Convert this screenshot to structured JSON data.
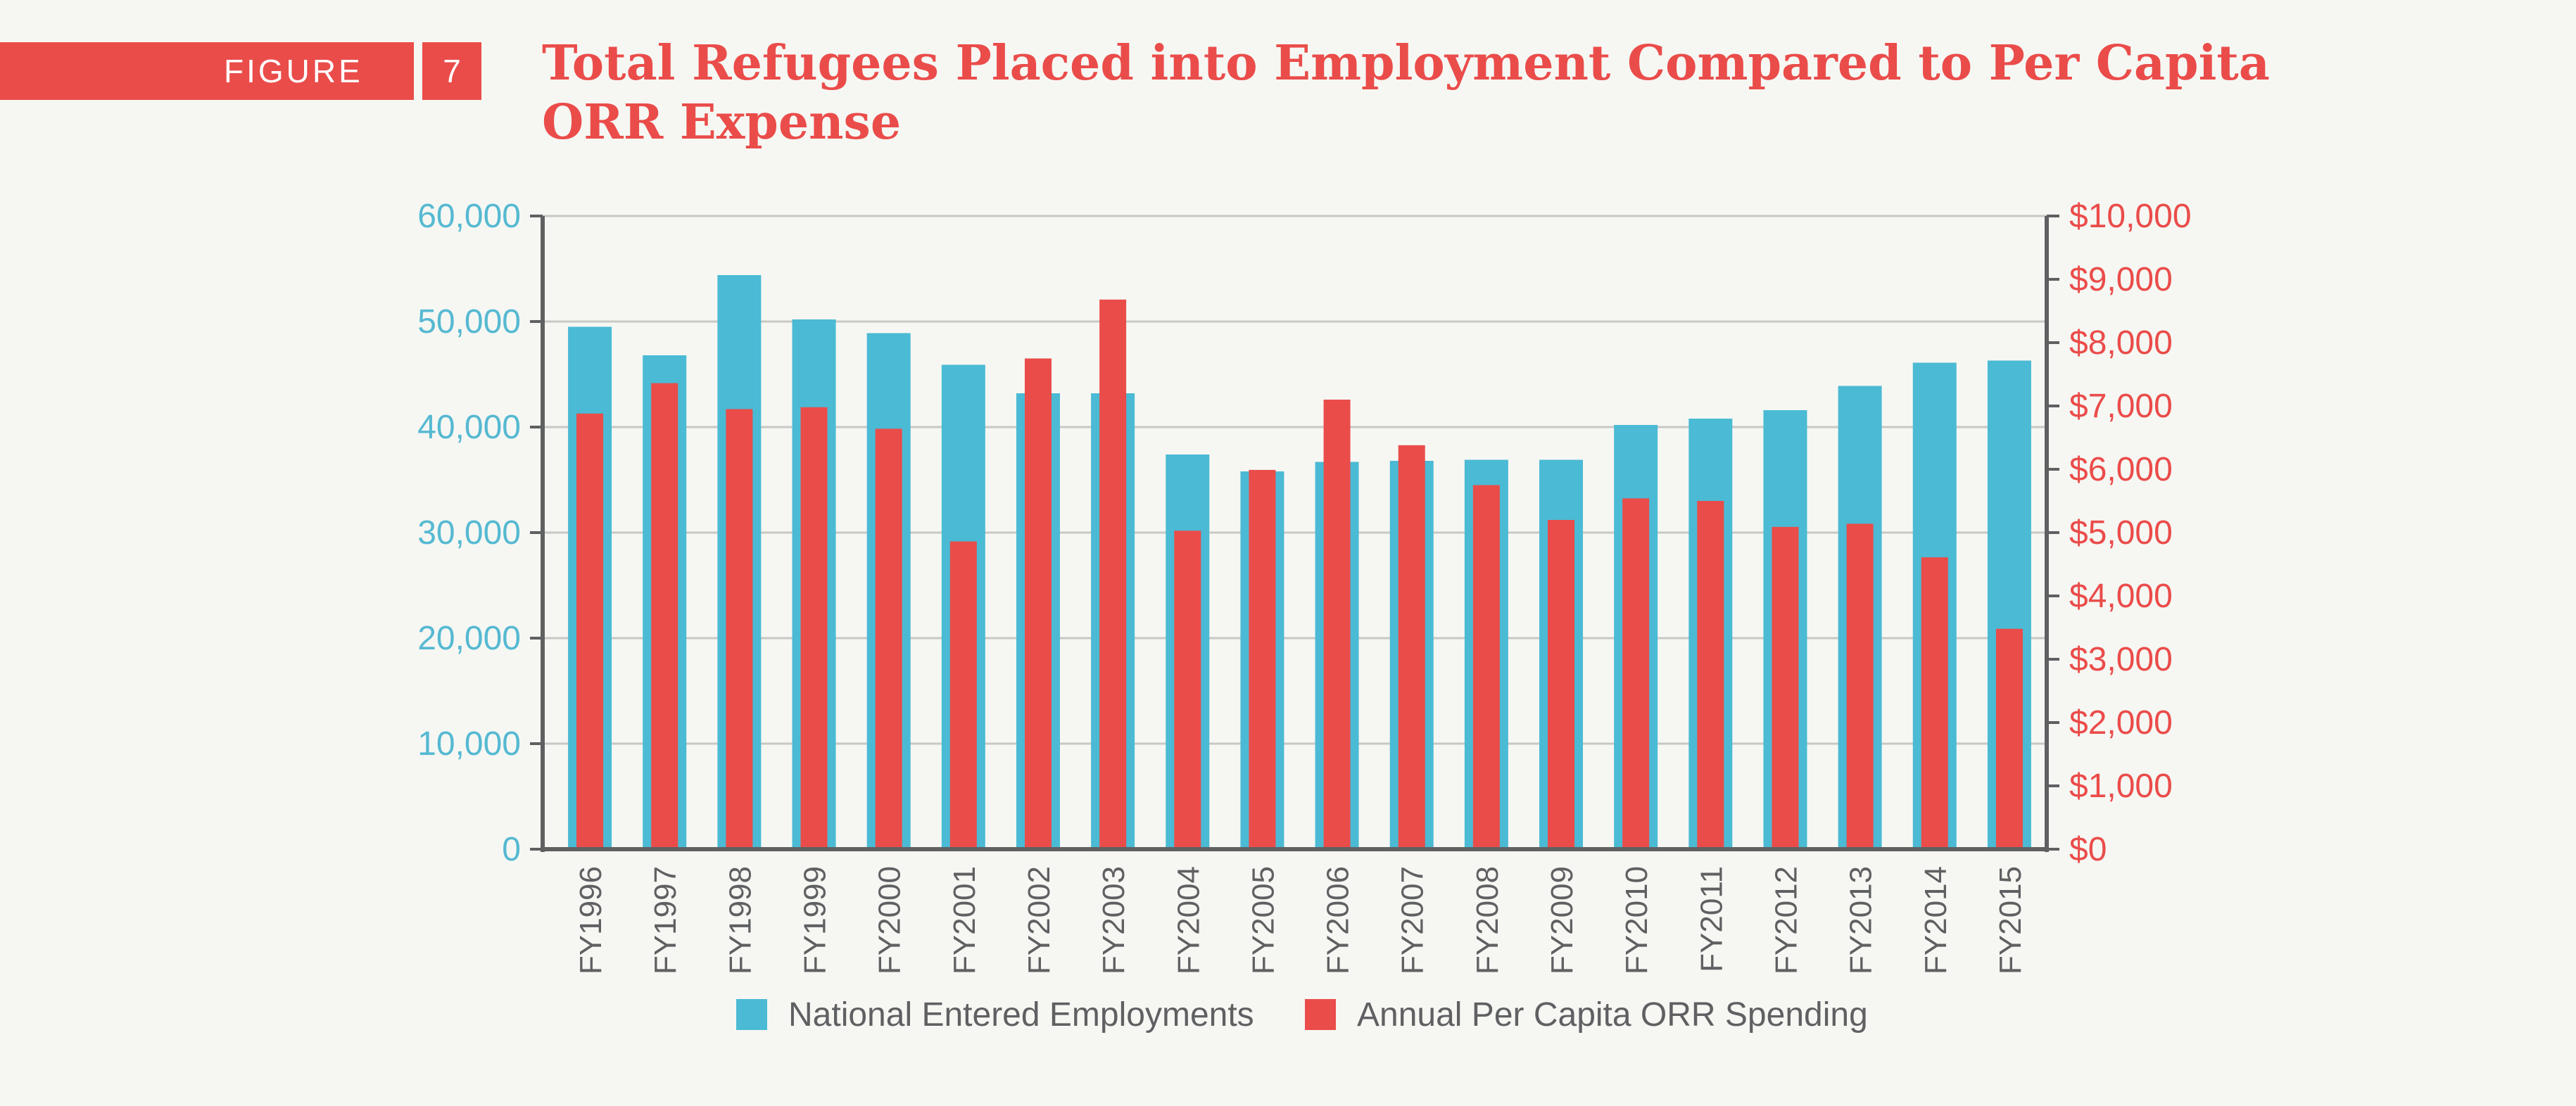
{
  "figure": {
    "label": "FIGURE",
    "number": "7"
  },
  "title": "Total Refugees Placed into Employment Compared to Per Capita ORR Expense",
  "colors": {
    "employment": "#4bbad4",
    "spending": "#ea4c4a",
    "axis": "#5f6062",
    "grid": "#c8c9c6",
    "left_tick": "#56b9d2",
    "right_tick": "#ea4c4a",
    "text": "#5f6062"
  },
  "chart_data": {
    "type": "bar",
    "title": "Total Refugees Placed into Employment Compared to Per Capita ORR Expense",
    "categories": [
      "FY1996",
      "FY1997",
      "FY1998",
      "FY1999",
      "FY2000",
      "FY2001",
      "FY2002",
      "FY2003",
      "FY2004",
      "FY2005",
      "FY2006",
      "FY2007",
      "FY2008",
      "FY2009",
      "FY2010",
      "FY2011",
      "FY2012",
      "FY2013",
      "FY2014",
      "FY2015"
    ],
    "series": [
      {
        "name": "National Entered Employments",
        "axis": "left",
        "values": [
          49500,
          46800,
          54400,
          50200,
          48900,
          45900,
          43200,
          43200,
          37400,
          35800,
          36700,
          36800,
          36900,
          36900,
          40200,
          40800,
          41600,
          43900,
          46100,
          46300
        ]
      },
      {
        "name": "Annual Per Capita ORR Spending",
        "axis": "right",
        "values": [
          6880,
          7360,
          6950,
          6980,
          6640,
          4860,
          7750,
          8680,
          5030,
          5990,
          7100,
          6380,
          5750,
          5200,
          5540,
          5500,
          5090,
          5140,
          4610,
          3480
        ]
      }
    ],
    "left_axis": {
      "ylim": [
        0,
        60000
      ],
      "ticks": [
        "0",
        "10,000",
        "20,000",
        "30,000",
        "40,000",
        "50,000",
        "60,000"
      ]
    },
    "right_axis": {
      "ylim": [
        0,
        10000
      ],
      "ticks": [
        "$0",
        "$1,000",
        "$2,000",
        "$3,000",
        "$4,000",
        "$5,000",
        "$6,000",
        "$7,000",
        "$8,000",
        "$9,000",
        "$10,000"
      ]
    },
    "grid": true,
    "legend_position": "bottom"
  }
}
